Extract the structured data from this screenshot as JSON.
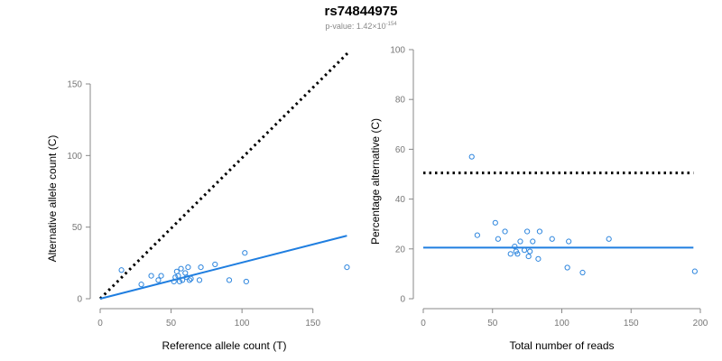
{
  "header": {
    "title": "rs74844975",
    "pvalue_prefix": "p-value: 1.42×10",
    "pvalue_exponent": "-154"
  },
  "colors": {
    "points": "#2e86de",
    "fit_line": "#1f7ee0",
    "reference_line": "#000000",
    "axis": "#888888"
  },
  "chart_data": [
    {
      "type": "scatter",
      "xlabel": "Reference allele count (T)",
      "ylabel": "Alternative allele count (C)",
      "xlim": [
        0,
        175
      ],
      "ylim": [
        0,
        150
      ],
      "xticks": [
        0,
        50,
        100,
        150
      ],
      "yticks": [
        0,
        50,
        100,
        150
      ],
      "points": [
        {
          "x": 15,
          "y": 20
        },
        {
          "x": 29,
          "y": 10
        },
        {
          "x": 36,
          "y": 16
        },
        {
          "x": 41,
          "y": 13
        },
        {
          "x": 43,
          "y": 16
        },
        {
          "x": 52,
          "y": 12
        },
        {
          "x": 53,
          "y": 15
        },
        {
          "x": 54,
          "y": 19
        },
        {
          "x": 55,
          "y": 16
        },
        {
          "x": 56,
          "y": 12
        },
        {
          "x": 57,
          "y": 21
        },
        {
          "x": 58,
          "y": 13
        },
        {
          "x": 60,
          "y": 18
        },
        {
          "x": 61,
          "y": 15
        },
        {
          "x": 62,
          "y": 22
        },
        {
          "x": 63,
          "y": 13
        },
        {
          "x": 64,
          "y": 14
        },
        {
          "x": 70,
          "y": 13
        },
        {
          "x": 71,
          "y": 22
        },
        {
          "x": 81,
          "y": 24
        },
        {
          "x": 91,
          "y": 13
        },
        {
          "x": 102,
          "y": 32
        },
        {
          "x": 103,
          "y": 12
        },
        {
          "x": 174,
          "y": 22
        }
      ],
      "lines": [
        {
          "style": "dotted",
          "role": "reference",
          "x": [
            0,
            175
          ],
          "y": [
            0,
            172
          ]
        },
        {
          "style": "solid",
          "role": "fit",
          "x": [
            0,
            174
          ],
          "y": [
            0,
            44
          ]
        }
      ]
    },
    {
      "type": "scatter",
      "xlabel": "Total number of reads",
      "ylabel": "Percentage alternative (C)",
      "xlim": [
        0,
        200
      ],
      "ylim": [
        0,
        100
      ],
      "xticks": [
        0,
        50,
        100,
        150,
        200
      ],
      "yticks": [
        0,
        20,
        40,
        60,
        80,
        100
      ],
      "points": [
        {
          "x": 35,
          "y": 57
        },
        {
          "x": 39,
          "y": 25.5
        },
        {
          "x": 52,
          "y": 30.5
        },
        {
          "x": 54,
          "y": 24
        },
        {
          "x": 59,
          "y": 27
        },
        {
          "x": 63,
          "y": 18
        },
        {
          "x": 66,
          "y": 21
        },
        {
          "x": 67,
          "y": 19
        },
        {
          "x": 68,
          "y": 18
        },
        {
          "x": 70,
          "y": 23
        },
        {
          "x": 73,
          "y": 19.5
        },
        {
          "x": 75,
          "y": 27
        },
        {
          "x": 76,
          "y": 17
        },
        {
          "x": 77,
          "y": 19
        },
        {
          "x": 79,
          "y": 23
        },
        {
          "x": 83,
          "y": 16
        },
        {
          "x": 84,
          "y": 27
        },
        {
          "x": 93,
          "y": 24
        },
        {
          "x": 104,
          "y": 12.5
        },
        {
          "x": 105,
          "y": 23
        },
        {
          "x": 115,
          "y": 10.5
        },
        {
          "x": 134,
          "y": 24
        },
        {
          "x": 196,
          "y": 11
        }
      ],
      "lines": [
        {
          "style": "dotted",
          "role": "reference",
          "x": [
            0,
            195
          ],
          "y": [
            50.5,
            50.5
          ]
        },
        {
          "style": "solid",
          "role": "fit",
          "x": [
            0,
            195
          ],
          "y": [
            20.5,
            20.5
          ]
        }
      ]
    }
  ]
}
